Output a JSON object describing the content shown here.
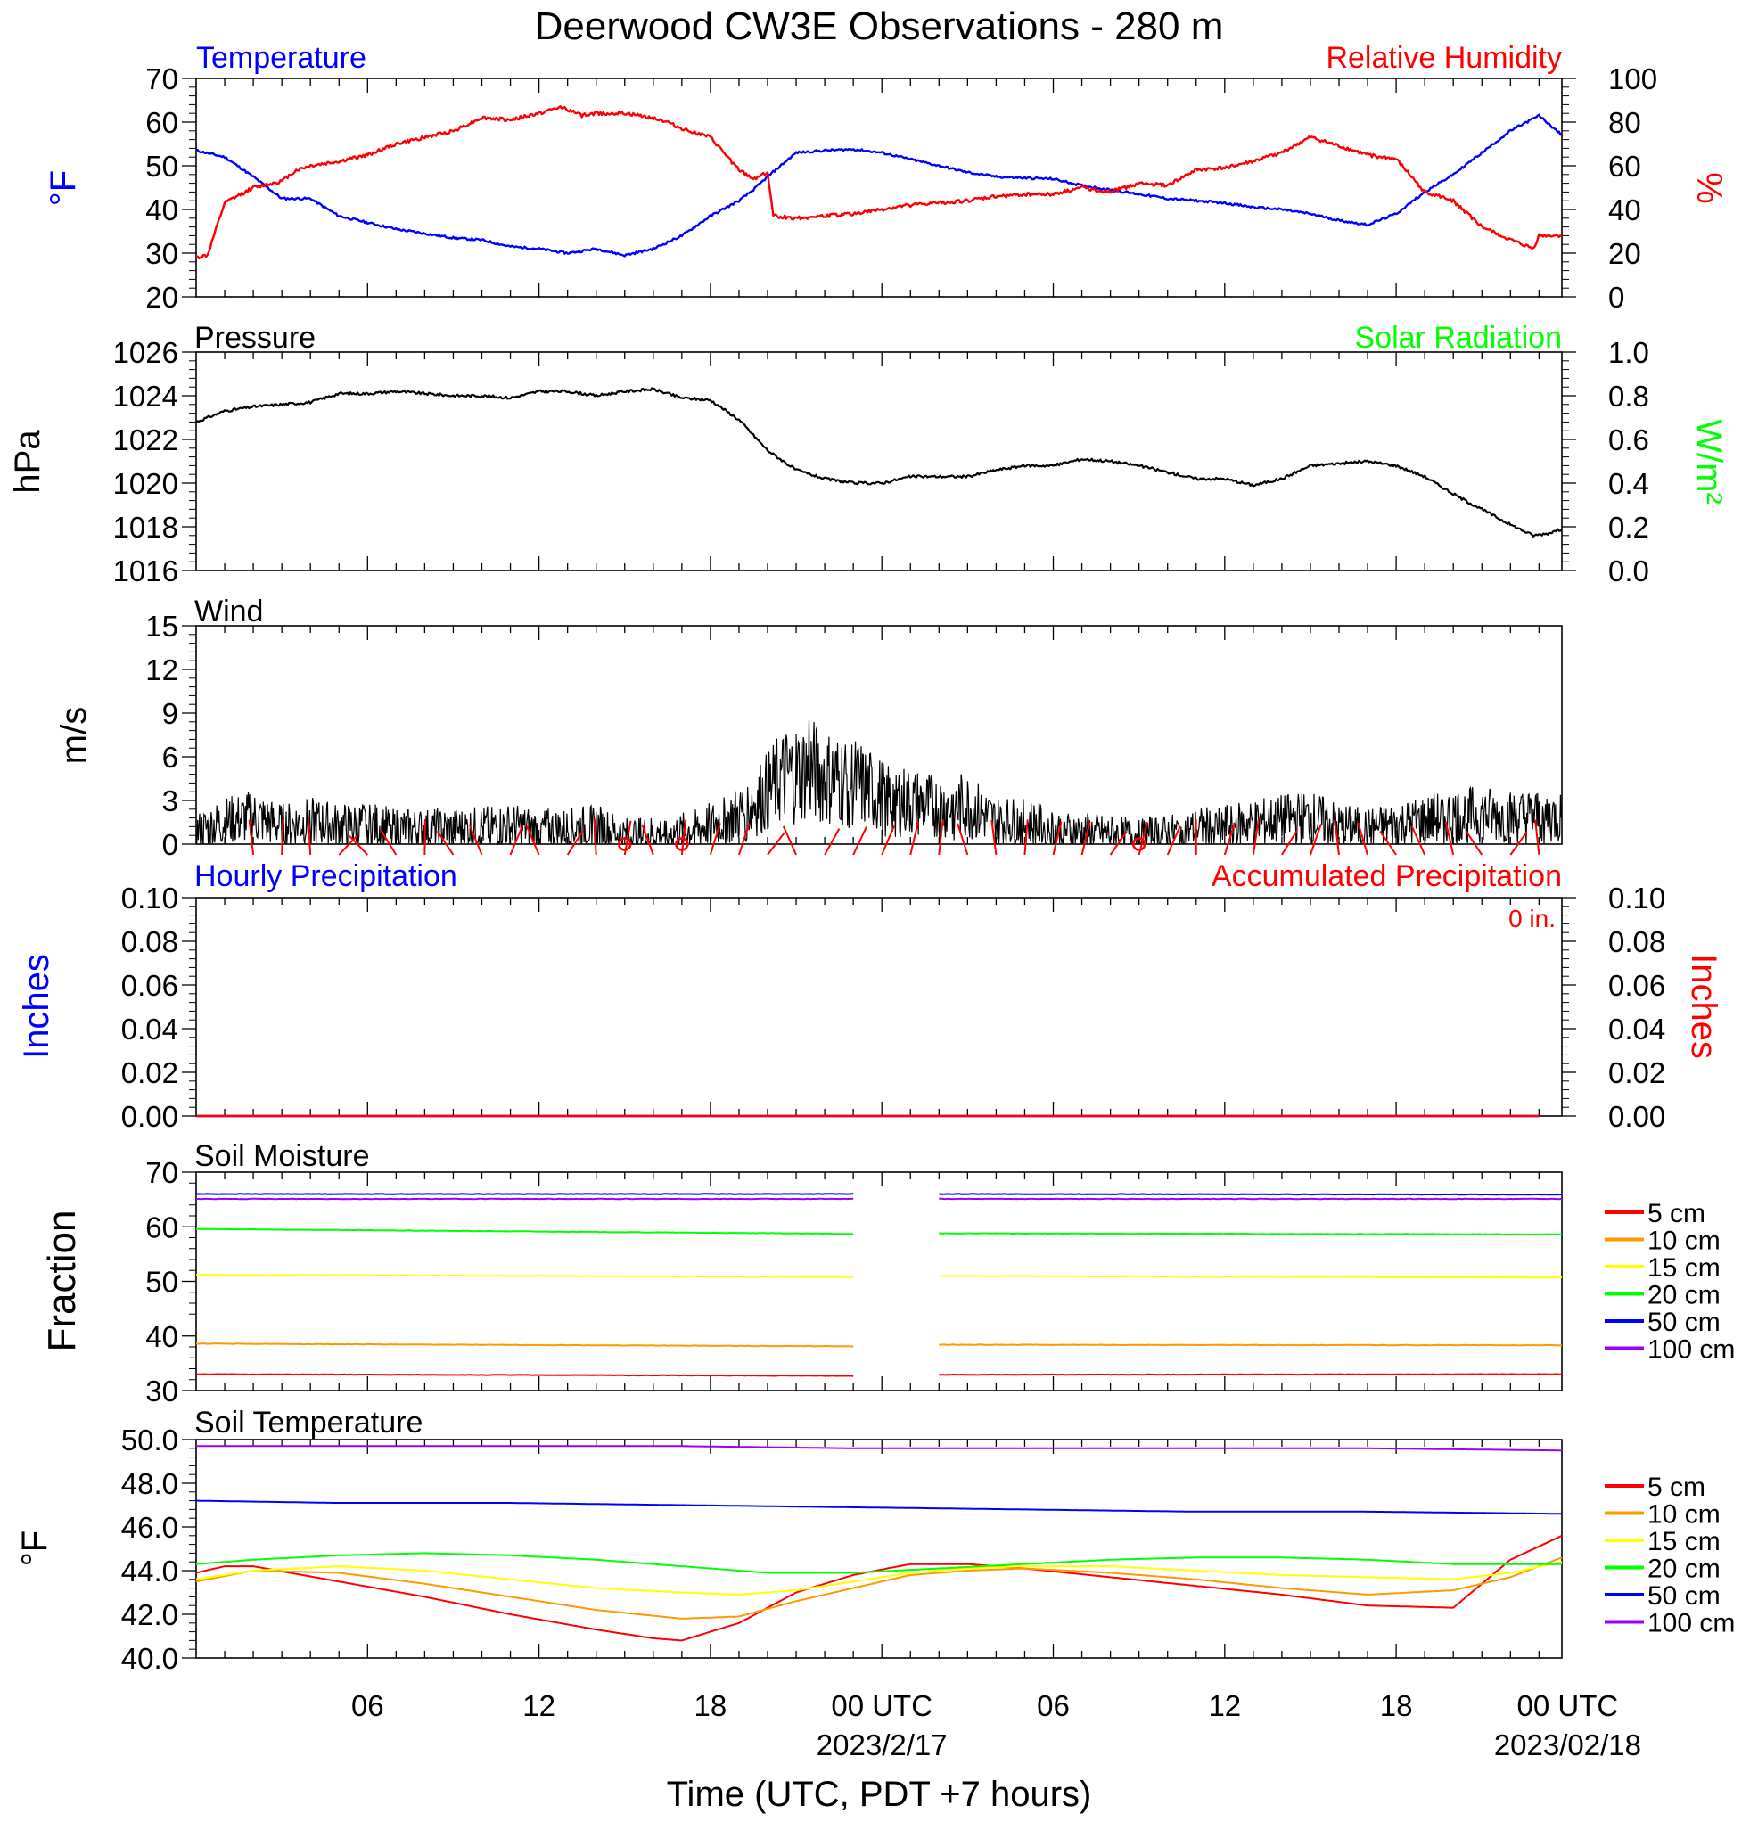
{
  "chart_data": {
    "type": "line",
    "title": "Deerwood CW3E Observations - 280 m",
    "xlabel": "Time (UTC, PDT +7 hours)",
    "x_ticks": [
      "06",
      "12",
      "18",
      "00 UTC",
      "06",
      "12",
      "18",
      "00 UTC"
    ],
    "x_dates": [
      "2023/2/17",
      "2023/02/18"
    ],
    "x_range_hours": [
      1,
      48.8
    ],
    "colors": {
      "blue": "#0000ff",
      "red": "#ff0000",
      "green": "#00ff00",
      "black": "#000000",
      "orange": "#ff9900",
      "yellow": "#ffff00",
      "purple": "#9900ff"
    },
    "panels": {
      "temp_rh": {
        "left_title": "Temperature",
        "right_title": "Relative Humidity",
        "ylabel_left": "°F",
        "ylabel_right": "%",
        "ylim_left": [
          20,
          70
        ],
        "ylim_right": [
          0,
          100
        ],
        "yticks_left": [
          "20",
          "30",
          "40",
          "50",
          "60",
          "70"
        ],
        "yticks_right": [
          "0",
          "20",
          "40",
          "60",
          "80",
          "100"
        ],
        "series": [
          {
            "name": "Temperature",
            "color": "#0000ff",
            "axis": "left",
            "x": [
              1,
              2,
              3,
              4,
              5,
              6,
              7,
              8,
              9,
              10,
              11,
              12,
              13,
              14,
              15,
              16,
              17,
              18,
              19,
              20,
              20.5,
              21,
              22,
              23,
              24,
              25,
              26,
              27,
              28,
              29,
              30,
              31,
              32,
              33,
              34,
              35,
              36,
              37,
              38,
              39,
              40,
              41,
              42,
              43,
              44,
              45,
              46,
              47,
              48,
              48.8
            ],
            "y": [
              53.5,
              52,
              47.5,
              42.5,
              42.5,
              38.5,
              37,
              35.5,
              34.5,
              33.5,
              33,
              31.5,
              31,
              30,
              31,
              29.5,
              31,
              34,
              38.5,
              42,
              44.5,
              47.5,
              53,
              53.5,
              53.8,
              53,
              51.5,
              50,
              48.5,
              47.5,
              47.2,
              47,
              45.5,
              44.5,
              43.5,
              42.5,
              42,
              41.5,
              40.5,
              40,
              39,
              37.5,
              36.5,
              39,
              44,
              48,
              53,
              58,
              61.5,
              57
            ]
          },
          {
            "name": "Relative Humidity",
            "color": "#ff0000",
            "axis": "right",
            "x": [
              1,
              1.4,
              2,
              3,
              4,
              4.5,
              5,
              6,
              7,
              8,
              9,
              10,
              11,
              12,
              13,
              13.8,
              14.5,
              15,
              16,
              17,
              17.5,
              18,
              19,
              20,
              20.5,
              21,
              21.2,
              22,
              23,
              24,
              25,
              26,
              27,
              28,
              29,
              30,
              31,
              32,
              33,
              34,
              35,
              36,
              37,
              38,
              39,
              40,
              41,
              42,
              43,
              44,
              45,
              46,
              47,
              47.8,
              48,
              48.8
            ],
            "y": [
              18,
              19,
              43,
              50,
              53,
              58,
              60,
              62,
              65,
              70,
              73,
              76,
              82,
              81,
              84,
              87,
              83,
              84,
              84,
              82,
              80,
              77,
              73,
              58,
              54,
              57,
              37,
              36,
              37,
              38,
              40,
              42,
              43,
              44,
              46,
              47,
              47,
              50,
              48,
              52,
              51,
              58,
              59,
              62,
              66,
              73,
              69,
              65,
              63,
              48,
              44,
              32,
              26,
              22,
              28,
              28
            ]
          }
        ]
      },
      "pressure": {
        "left_title": "Pressure",
        "right_title": "Solar Radiation",
        "ylabel_left": "hPa",
        "ylabel_right": "W/m²",
        "ylim_left": [
          1016,
          1026
        ],
        "ylim_right": [
          0,
          1.0
        ],
        "yticks_left": [
          "1016",
          "1018",
          "1020",
          "1022",
          "1024",
          "1026"
        ],
        "yticks_right": [
          "0.0",
          "0.2",
          "0.4",
          "0.6",
          "0.8",
          "1.0"
        ],
        "series": [
          {
            "name": "Pressure",
            "color": "#000000",
            "axis": "left",
            "x": [
              1,
              2,
              3,
              4,
              5,
              6,
              7,
              8,
              9,
              10,
              11,
              12,
              13,
              14,
              15,
              16,
              17,
              18,
              19,
              20,
              21,
              22,
              23,
              24,
              25,
              26,
              27,
              28,
              29,
              30,
              31,
              32,
              33,
              34,
              35,
              36,
              37,
              38,
              39,
              40,
              41,
              42,
              43,
              44,
              45,
              46,
              47,
              47.8,
              48.3,
              48.8
            ],
            "y": [
              1022.8,
              1023.3,
              1023.5,
              1023.6,
              1023.7,
              1024.1,
              1024.1,
              1024.2,
              1024.1,
              1024.0,
              1024.0,
              1023.9,
              1024.2,
              1024.2,
              1024.0,
              1024.2,
              1024.3,
              1023.9,
              1023.8,
              1022.9,
              1021.5,
              1020.6,
              1020.2,
              1020.0,
              1020.0,
              1020.3,
              1020.3,
              1020.3,
              1020.6,
              1020.8,
              1020.8,
              1021.1,
              1021.0,
              1020.8,
              1020.5,
              1020.2,
              1020.2,
              1019.9,
              1020.2,
              1020.8,
              1020.9,
              1021.0,
              1020.8,
              1020.3,
              1019.5,
              1018.8,
              1018.1,
              1017.6,
              1017.7,
              1017.9
            ]
          }
        ]
      },
      "wind": {
        "left_title": "Wind",
        "ylabel_left": "m/s",
        "ylim_left": [
          0,
          15
        ],
        "yticks_left": [
          "0",
          "3",
          "6",
          "9",
          "12",
          "15"
        ],
        "series": [
          {
            "name": "Wind",
            "color": "#000000",
            "axis": "left",
            "x": [
              1,
              2,
              3,
              4,
              5,
              6,
              7,
              8,
              9,
              10,
              11,
              12,
              13,
              14,
              15,
              16,
              17,
              18,
              19,
              20,
              21,
              21.5,
              22,
              22.5,
              23,
              24,
              25,
              26,
              27,
              28,
              29,
              30,
              31,
              32,
              33,
              34,
              35,
              36,
              37,
              38,
              39,
              40,
              41,
              42,
              43,
              44,
              45,
              46,
              47,
              48,
              48.8
            ],
            "y": [
              0.8,
              1.5,
              1.8,
              1.2,
              1.5,
              1.2,
              1.3,
              1.0,
              1.0,
              1.0,
              1.1,
              1.2,
              1.0,
              1.0,
              1.2,
              0.6,
              0.7,
              0.8,
              1.3,
              2.0,
              3.5,
              4.5,
              4.8,
              5.0,
              4.5,
              4.2,
              3.2,
              2.8,
              2.5,
              2.6,
              1.5,
              1.5,
              1.0,
              0.8,
              0.7,
              0.6,
              0.7,
              1.0,
              1.2,
              1.4,
              1.6,
              1.8,
              1.2,
              1.0,
              1.3,
              1.6,
              1.9,
              2.0,
              1.8,
              1.9,
              1.8
            ]
          }
        ],
        "barb_hours": [
          3,
          4,
          5,
          6,
          7,
          8,
          9,
          10,
          11,
          12,
          13,
          14,
          15,
          16,
          17,
          18,
          19,
          20,
          21,
          22,
          23,
          24,
          25,
          26,
          27,
          28,
          29,
          30,
          31,
          32,
          33,
          34,
          35,
          36,
          37,
          38,
          39,
          40,
          41,
          42,
          43,
          44,
          45,
          46,
          47,
          48
        ],
        "calm_hours": [
          16,
          18,
          34
        ]
      },
      "precip": {
        "left_title": "Hourly Precipitation",
        "right_title": "Accumulated Precipitation",
        "accum_label": "0 in.",
        "ylabel_left": "Inches",
        "ylabel_right": "Inches",
        "ylim_left": [
          0,
          0.1
        ],
        "ylim_right": [
          0,
          0.1
        ],
        "yticks_left": [
          "0.00",
          "0.02",
          "0.04",
          "0.06",
          "0.08",
          "0.10"
        ],
        "yticks_right": [
          "0.00",
          "0.02",
          "0.04",
          "0.06",
          "0.08",
          "0.10"
        ],
        "series": [
          {
            "name": "Hourly Precipitation",
            "color": "#0000ff",
            "axis": "left",
            "x": [
              1,
              48.8
            ],
            "y": [
              0,
              0
            ]
          },
          {
            "name": "Accumulated Precipitation",
            "color": "#ff0000",
            "axis": "right",
            "x": [
              1,
              48.8
            ],
            "y": [
              0,
              0
            ]
          }
        ]
      },
      "soil_moisture": {
        "left_title": "Soil Moisture",
        "ylabel_left": "Fraction",
        "ylim_left": [
          30,
          70
        ],
        "yticks_left": [
          "30",
          "40",
          "50",
          "60",
          "70"
        ],
        "gap_hours": [
          24,
          27
        ],
        "legend": [
          "5 cm",
          "10 cm",
          "15 cm",
          "20 cm",
          "50 cm",
          "100 cm"
        ],
        "series": [
          {
            "name": "5 cm",
            "color": "#ff0000",
            "x": [
              1,
              24,
              27,
              48.8
            ],
            "y": [
              33.0,
              32.7,
              32.9,
              33.0
            ]
          },
          {
            "name": "10 cm",
            "color": "#ff9900",
            "x": [
              1,
              24,
              27,
              48.8
            ],
            "y": [
              38.6,
              38.1,
              38.4,
              38.3
            ]
          },
          {
            "name": "15 cm",
            "color": "#ffff00",
            "x": [
              1,
              24,
              27,
              48.8
            ],
            "y": [
              51.2,
              50.8,
              51.0,
              50.7
            ]
          },
          {
            "name": "20 cm",
            "color": "#00ff00",
            "x": [
              1,
              24,
              27,
              48.8
            ],
            "y": [
              59.6,
              58.7,
              58.8,
              58.6
            ]
          },
          {
            "name": "50 cm",
            "color": "#0000ff",
            "x": [
              1,
              24,
              27,
              48.8
            ],
            "y": [
              66.0,
              66.0,
              66.0,
              65.9
            ]
          },
          {
            "name": "100 cm",
            "color": "#9900ff",
            "x": [
              1,
              24,
              27,
              48.8
            ],
            "y": [
              65.1,
              65.1,
              65.1,
              65.1
            ]
          }
        ]
      },
      "soil_temp": {
        "left_title": "Soil Temperature",
        "ylabel_left": "°F",
        "ylim_left": [
          40,
          50
        ],
        "yticks_left": [
          "40.0",
          "42.0",
          "44.0",
          "46.0",
          "48.0",
          "50.0"
        ],
        "legend": [
          "5 cm",
          "10 cm",
          "15 cm",
          "20 cm",
          "50 cm",
          "100 cm"
        ],
        "series": [
          {
            "name": "5 cm",
            "color": "#ff0000",
            "x": [
              1,
              2,
              3,
              6,
              9,
              12,
              15,
              17,
              18,
              20,
              22,
              24,
              26,
              28,
              30,
              33,
              36,
              39,
              42,
              45,
              47,
              48.8
            ],
            "y": [
              43.9,
              44.2,
              44.2,
              43.5,
              42.8,
              42.0,
              41.3,
              40.9,
              40.8,
              41.6,
              43.0,
              43.8,
              44.3,
              44.3,
              44.1,
              43.7,
              43.3,
              42.9,
              42.4,
              42.3,
              44.5,
              45.6
            ]
          },
          {
            "name": "10 cm",
            "color": "#ff9900",
            "x": [
              1,
              3,
              6,
              9,
              12,
              15,
              18,
              20,
              22,
              24,
              26,
              28,
              30,
              33,
              36,
              39,
              42,
              45,
              47,
              48.8
            ],
            "y": [
              43.5,
              44.0,
              43.9,
              43.4,
              42.8,
              42.2,
              41.8,
              41.9,
              42.6,
              43.2,
              43.8,
              44.0,
              44.1,
              43.9,
              43.6,
              43.2,
              42.9,
              43.1,
              43.7,
              44.6
            ]
          },
          {
            "name": "15 cm",
            "color": "#ffff00",
            "x": [
              1,
              3,
              6,
              9,
              12,
              15,
              18,
              20,
              22,
              24,
              26,
              28,
              30,
              33,
              36,
              39,
              42,
              45,
              47,
              48.8
            ],
            "y": [
              43.6,
              44.0,
              44.2,
              44.0,
              43.6,
              43.2,
              43.0,
              42.9,
              43.1,
              43.5,
              43.9,
              44.1,
              44.2,
              44.2,
              44.0,
              43.8,
              43.7,
              43.6,
              43.9,
              44.4
            ]
          },
          {
            "name": "20 cm",
            "color": "#00ff00",
            "x": [
              1,
              3,
              6,
              9,
              12,
              15,
              18,
              21,
              24,
              27,
              30,
              33,
              36,
              39,
              42,
              45,
              48.8
            ],
            "y": [
              44.3,
              44.5,
              44.7,
              44.8,
              44.7,
              44.5,
              44.2,
              43.9,
              43.9,
              44.1,
              44.3,
              44.5,
              44.6,
              44.6,
              44.5,
              44.3,
              44.3
            ]
          },
          {
            "name": "50 cm",
            "color": "#0000ff",
            "x": [
              1,
              6,
              12,
              18,
              24,
              30,
              36,
              42,
              48.8
            ],
            "y": [
              47.2,
              47.1,
              47.1,
              47.0,
              46.9,
              46.8,
              46.7,
              46.7,
              46.6
            ]
          },
          {
            "name": "100 cm",
            "color": "#9900ff",
            "x": [
              1,
              6,
              12,
              18,
              24,
              30,
              36,
              42,
              48.8
            ],
            "y": [
              49.7,
              49.7,
              49.7,
              49.7,
              49.6,
              49.6,
              49.6,
              49.6,
              49.5
            ]
          }
        ]
      }
    }
  }
}
